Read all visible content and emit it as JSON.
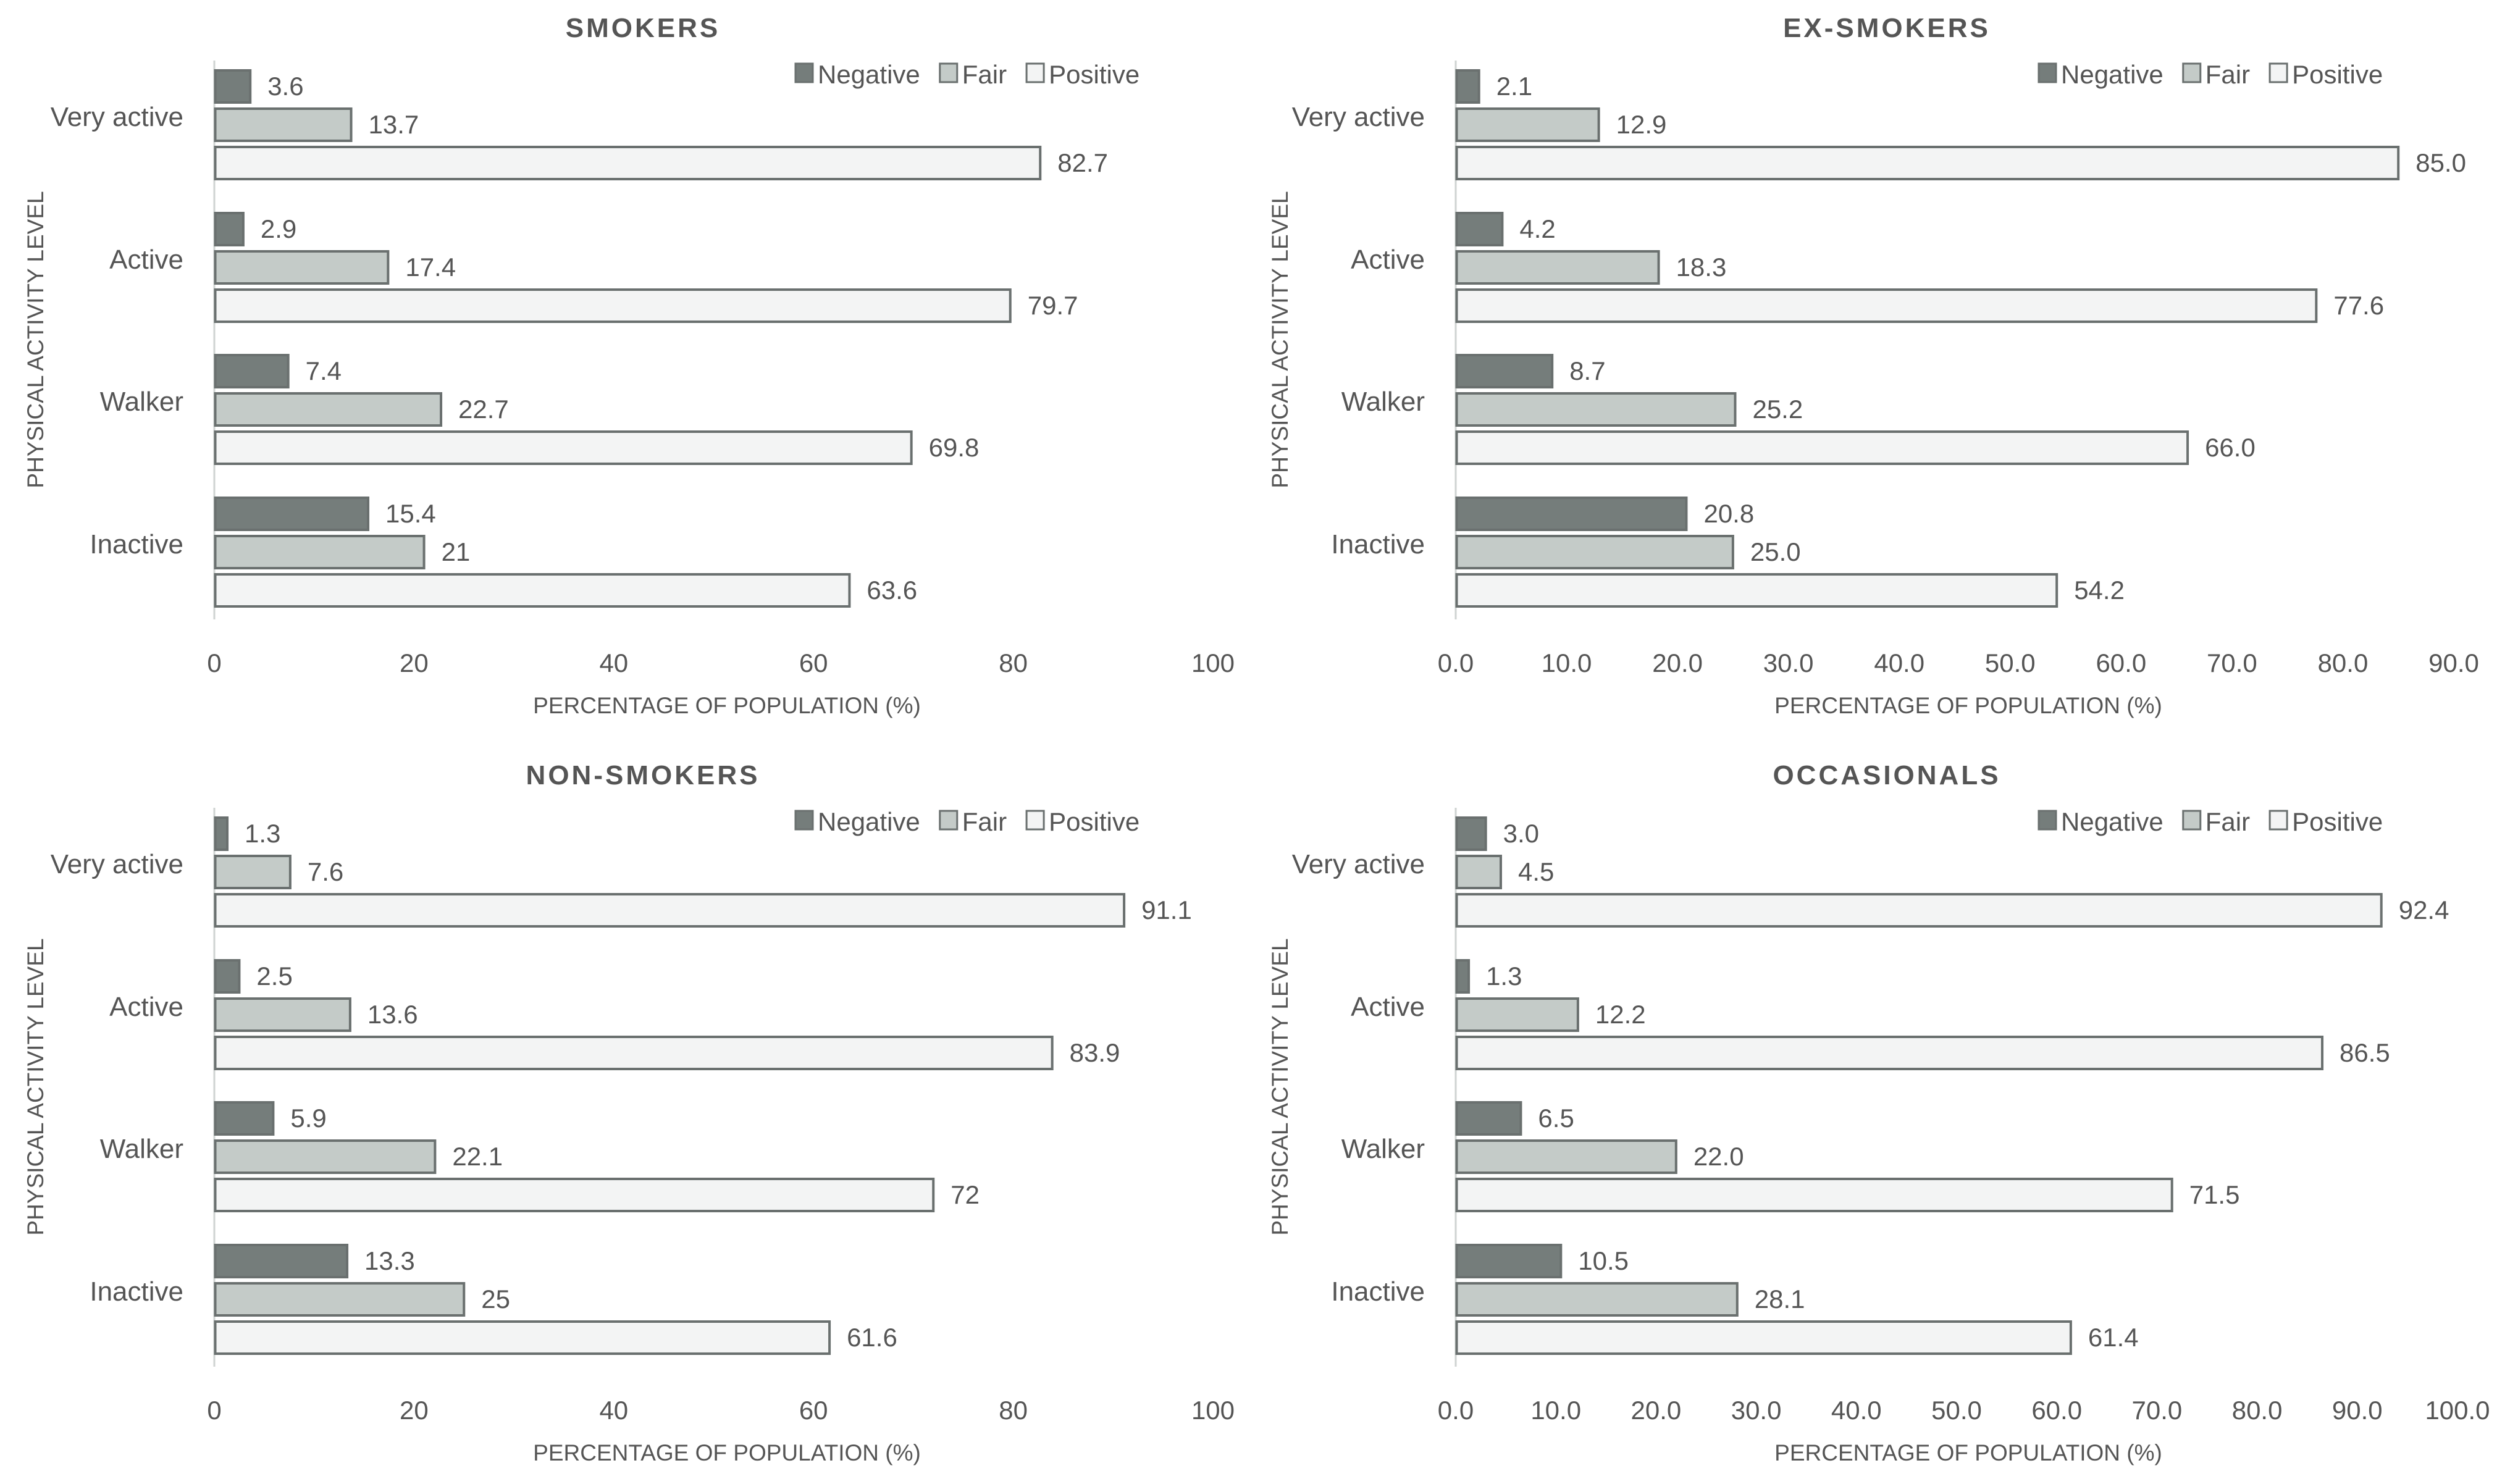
{
  "chart_data": [
    {
      "type": "bar",
      "orientation": "horizontal",
      "title": "SMOKERS",
      "xlabel": "PERCENTAGE OF POPULATION (%)",
      "ylabel": "PHYSICAL ACTIVITY LEVEL",
      "categories": [
        "Very active",
        "Active",
        "Walker",
        "Inactive"
      ],
      "xlim": [
        0,
        100
      ],
      "xticks": [
        "0",
        "20",
        "40",
        "60",
        "80",
        "100"
      ],
      "legend_position": "top-right",
      "series": [
        {
          "name": "Negative",
          "color": "#757d7b",
          "values": [
            3.6,
            2.9,
            7.4,
            15.4
          ],
          "labels": [
            "3.6",
            "2.9",
            "7.4",
            "15.4"
          ]
        },
        {
          "name": "Fair",
          "color": "#c4cbc8",
          "values": [
            13.7,
            17.4,
            22.7,
            21
          ],
          "labels": [
            "13.7",
            "17.4",
            "22.7",
            "21"
          ]
        },
        {
          "name": "Positive",
          "color": "#f3f4f4",
          "values": [
            82.7,
            79.7,
            69.8,
            63.6
          ],
          "labels": [
            "82.7",
            "79.7",
            "69.8",
            "63.6"
          ]
        }
      ]
    },
    {
      "type": "bar",
      "orientation": "horizontal",
      "title": "EX-SMOKERS",
      "xlabel": "PERCENTAGE OF POPULATION (%)",
      "ylabel": "PHYSICAL ACTIVITY LEVEL",
      "categories": [
        "Very active",
        "Active",
        "Walker",
        "Inactive"
      ],
      "xlim": [
        0,
        90
      ],
      "xticks": [
        "0.0",
        "10.0",
        "20.0",
        "30.0",
        "40.0",
        "50.0",
        "60.0",
        "70.0",
        "80.0",
        "90.0"
      ],
      "legend_position": "top-right",
      "series": [
        {
          "name": "Negative",
          "color": "#757d7b",
          "values": [
            2.1,
            4.2,
            8.7,
            20.8
          ],
          "labels": [
            "2.1",
            "4.2",
            "8.7",
            "20.8"
          ]
        },
        {
          "name": "Fair",
          "color": "#c4cbc8",
          "values": [
            12.9,
            18.3,
            25.2,
            25.0
          ],
          "labels": [
            "12.9",
            "18.3",
            "25.2",
            "25.0"
          ]
        },
        {
          "name": "Positive",
          "color": "#f3f4f4",
          "values": [
            85.0,
            77.6,
            66.0,
            54.2
          ],
          "labels": [
            "85.0",
            "77.6",
            "66.0",
            "54.2"
          ]
        }
      ]
    },
    {
      "type": "bar",
      "orientation": "horizontal",
      "title": "NON-SMOKERS",
      "xlabel": "PERCENTAGE OF POPULATION (%)",
      "ylabel": "PHYSICAL ACTIVITY LEVEL",
      "categories": [
        "Very active",
        "Active",
        "Walker",
        "Inactive"
      ],
      "xlim": [
        0,
        100
      ],
      "xticks": [
        "0",
        "20",
        "40",
        "60",
        "80",
        "100"
      ],
      "legend_position": "top-right",
      "series": [
        {
          "name": "Negative",
          "color": "#757d7b",
          "values": [
            1.3,
            2.5,
            5.9,
            13.3
          ],
          "labels": [
            "1.3",
            "2.5",
            "5.9",
            "13.3"
          ]
        },
        {
          "name": "Fair",
          "color": "#c4cbc8",
          "values": [
            7.6,
            13.6,
            22.1,
            25
          ],
          "labels": [
            "7.6",
            "13.6",
            "22.1",
            "25"
          ]
        },
        {
          "name": "Positive",
          "color": "#f3f4f4",
          "values": [
            91.1,
            83.9,
            72,
            61.6
          ],
          "labels": [
            "91.1",
            "83.9",
            "72",
            "61.6"
          ]
        }
      ]
    },
    {
      "type": "bar",
      "orientation": "horizontal",
      "title": "OCCASIONALS",
      "xlabel": "PERCENTAGE OF POPULATION (%)",
      "ylabel": "PHYSICAL ACTIVITY LEVEL",
      "categories": [
        "Very active",
        "Active",
        "Walker",
        "Inactive"
      ],
      "xlim": [
        0,
        100
      ],
      "xticks": [
        "0.0",
        "10.0",
        "20.0",
        "30.0",
        "40.0",
        "50.0",
        "60.0",
        "70.0",
        "80.0",
        "90.0",
        "100.0"
      ],
      "legend_position": "top-right",
      "series": [
        {
          "name": "Negative",
          "color": "#757d7b",
          "values": [
            3.0,
            1.3,
            6.5,
            10.5
          ],
          "labels": [
            "3.0",
            "1.3",
            "6.5",
            "10.5"
          ]
        },
        {
          "name": "Fair",
          "color": "#c4cbc8",
          "values": [
            4.5,
            12.2,
            22.0,
            28.1
          ],
          "labels": [
            "4.5",
            "12.2",
            "22.0",
            "28.1"
          ]
        },
        {
          "name": "Positive",
          "color": "#f3f4f4",
          "values": [
            92.4,
            86.5,
            71.5,
            61.4
          ],
          "labels": [
            "92.4",
            "86.5",
            "71.5",
            "61.4"
          ]
        }
      ]
    }
  ]
}
